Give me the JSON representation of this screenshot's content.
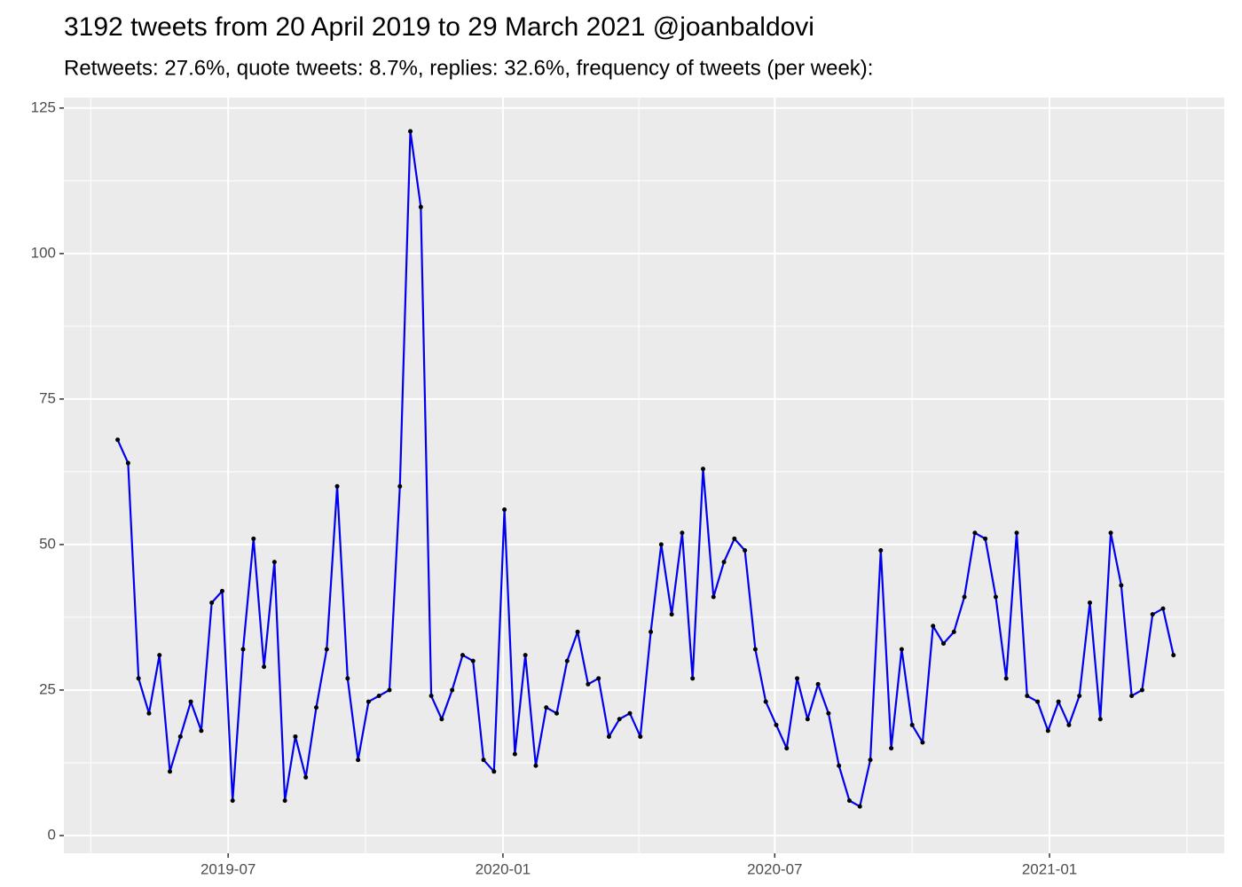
{
  "chart_data": {
    "type": "line",
    "title": "3192 tweets from 20 April 2019 to 29 March 2021 @joanbaldovi",
    "subtitle": "Retweets: 27.6%, quote tweets: 8.7%, replies: 32.6%, frequency of tweets (per week):",
    "x": [
      "2019-04-18",
      "2019-04-25",
      "2019-05-02",
      "2019-05-09",
      "2019-05-16",
      "2019-05-23",
      "2019-05-30",
      "2019-06-06",
      "2019-06-13",
      "2019-06-20",
      "2019-06-27",
      "2019-07-04",
      "2019-07-11",
      "2019-07-18",
      "2019-07-25",
      "2019-08-01",
      "2019-08-08",
      "2019-08-15",
      "2019-08-22",
      "2019-08-29",
      "2019-09-05",
      "2019-09-12",
      "2019-09-19",
      "2019-09-26",
      "2019-10-03",
      "2019-10-10",
      "2019-10-17",
      "2019-10-24",
      "2019-10-31",
      "2019-11-07",
      "2019-11-14",
      "2019-11-21",
      "2019-11-28",
      "2019-12-05",
      "2019-12-12",
      "2019-12-19",
      "2019-12-26",
      "2020-01-02",
      "2020-01-09",
      "2020-01-16",
      "2020-01-23",
      "2020-01-30",
      "2020-02-06",
      "2020-02-13",
      "2020-02-20",
      "2020-02-27",
      "2020-03-05",
      "2020-03-12",
      "2020-03-19",
      "2020-03-26",
      "2020-04-02",
      "2020-04-09",
      "2020-04-16",
      "2020-04-23",
      "2020-04-30",
      "2020-05-07",
      "2020-05-14",
      "2020-05-21",
      "2020-05-28",
      "2020-06-04",
      "2020-06-11",
      "2020-06-18",
      "2020-06-25",
      "2020-07-02",
      "2020-07-09",
      "2020-07-16",
      "2020-07-23",
      "2020-07-30",
      "2020-08-06",
      "2020-08-13",
      "2020-08-20",
      "2020-08-27",
      "2020-09-03",
      "2020-09-10",
      "2020-09-17",
      "2020-09-24",
      "2020-10-01",
      "2020-10-08",
      "2020-10-15",
      "2020-10-22",
      "2020-10-29",
      "2020-11-05",
      "2020-11-12",
      "2020-11-19",
      "2020-11-26",
      "2020-12-03",
      "2020-12-10",
      "2020-12-17",
      "2020-12-24",
      "2020-12-31",
      "2021-01-07",
      "2021-01-14",
      "2021-01-21",
      "2021-01-28",
      "2021-02-04",
      "2021-02-11",
      "2021-02-18",
      "2021-02-25",
      "2021-03-04",
      "2021-03-11",
      "2021-03-18",
      "2021-03-25"
    ],
    "values": [
      68,
      64,
      27,
      21,
      31,
      11,
      17,
      23,
      18,
      40,
      42,
      6,
      32,
      51,
      29,
      47,
      6,
      17,
      10,
      22,
      32,
      60,
      27,
      13,
      23,
      24,
      25,
      60,
      121,
      108,
      24,
      20,
      25,
      31,
      30,
      13,
      11,
      56,
      14,
      31,
      12,
      22,
      21,
      30,
      35,
      26,
      27,
      17,
      20,
      21,
      17,
      35,
      50,
      38,
      52,
      27,
      63,
      41,
      47,
      51,
      49,
      32,
      23,
      19,
      15,
      27,
      20,
      26,
      21,
      12,
      6,
      5,
      13,
      49,
      15,
      32,
      19,
      16,
      36,
      33,
      35,
      41,
      52,
      51,
      41,
      27,
      52,
      24,
      23,
      18,
      23,
      19,
      24,
      40,
      20,
      52,
      43,
      24,
      25,
      38,
      39,
      31
    ],
    "color": "#0000ee",
    "point_color": "#000000",
    "xlim": [
      "2019-03-13",
      "2021-04-28"
    ],
    "xticks": [
      {
        "value": "2019-07-01",
        "label": "2019-07"
      },
      {
        "value": "2020-01-01",
        "label": "2020-01"
      },
      {
        "value": "2020-07-01",
        "label": "2020-07"
      },
      {
        "value": "2021-01-01",
        "label": "2021-01"
      }
    ],
    "ylim": [
      -3.05,
      126.8
    ],
    "yticks": [
      0,
      25,
      50,
      75,
      100,
      125
    ],
    "grid": true
  }
}
